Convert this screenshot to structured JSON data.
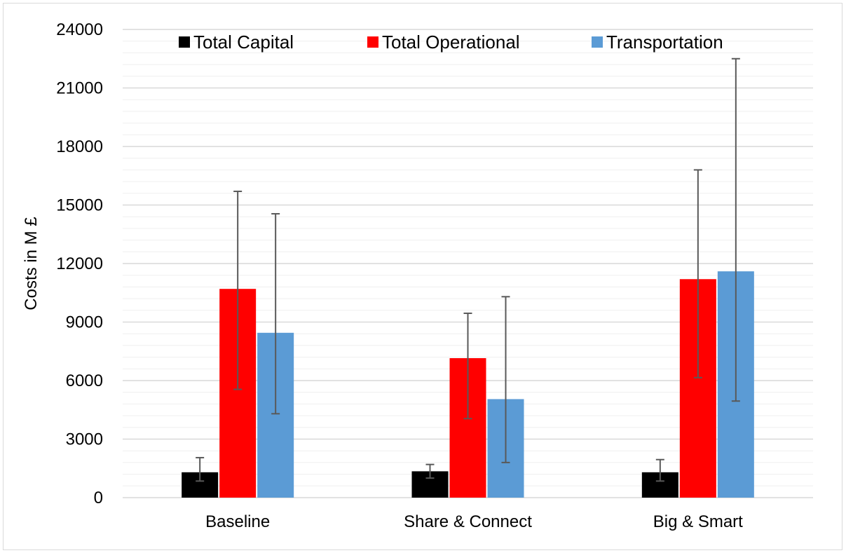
{
  "chart_data": {
    "type": "bar",
    "title": "",
    "xlabel": "",
    "ylabel": "Costs in M £",
    "ylim": [
      0,
      24000
    ],
    "yticks": [
      0,
      3000,
      6000,
      9000,
      12000,
      15000,
      18000,
      21000,
      24000
    ],
    "minor_gridlines_step": 600,
    "grid": true,
    "legend_position": "top",
    "categories": [
      "Baseline",
      "Share & Connect",
      "Big & Smart"
    ],
    "series": [
      {
        "name": "Total Capital",
        "color": "#000000",
        "values": [
          1300,
          1350,
          1300
        ],
        "error_low": [
          850,
          1000,
          850
        ],
        "error_high": [
          2050,
          1700,
          1950
        ]
      },
      {
        "name": "Total Operational",
        "color": "#ff0000",
        "values": [
          10700,
          7150,
          11200
        ],
        "error_low": [
          5550,
          4050,
          6150
        ],
        "error_high": [
          15700,
          9450,
          16800
        ]
      },
      {
        "name": "Transportation",
        "color": "#5b9bd5",
        "values": [
          8450,
          5050,
          11600
        ],
        "error_low": [
          4300,
          1800,
          4950
        ],
        "error_high": [
          14550,
          10300,
          22500
        ]
      }
    ]
  }
}
